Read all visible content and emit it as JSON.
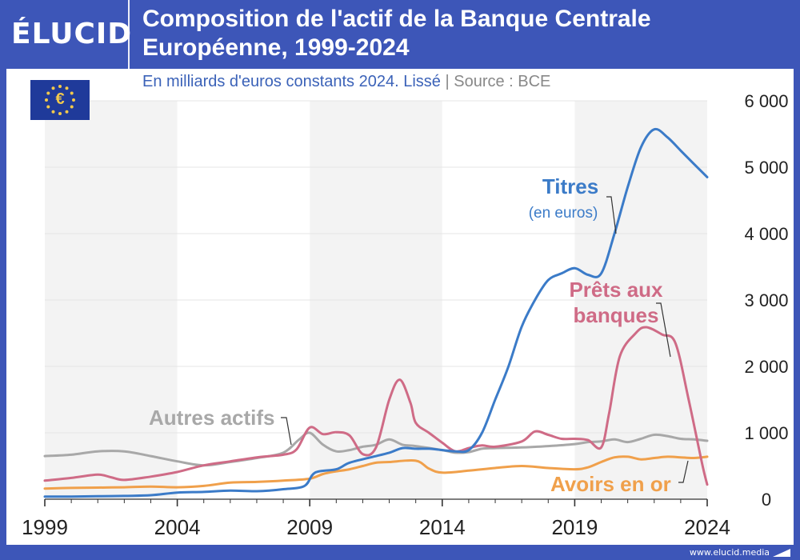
{
  "brand": {
    "logo": "ÉLUCID",
    "url": "www.elucid.media"
  },
  "header": {
    "title_line1": "Composition de l'actif de la Banque Centrale",
    "title_line2": "Européenne, 1999-2024"
  },
  "colors": {
    "brand_blue": "#3d56b8",
    "titres": "#3b7bc8",
    "prets": "#cf6b86",
    "autres": "#a8a8a8",
    "or": "#f0a04b",
    "subtitle_blue": "#3b62b8"
  },
  "chart_data": {
    "type": "line",
    "subtitle": "En milliards d'euros constants 2024. Lissé",
    "source": "Source : BCE",
    "xlim": [
      1999,
      2024
    ],
    "ylim": [
      0,
      6000
    ],
    "x_ticks": [
      1999,
      2004,
      2009,
      2014,
      2019,
      2024
    ],
    "x_tick_labels": [
      "1999",
      "2004",
      "2009",
      "2014",
      "2019",
      "2024"
    ],
    "y_ticks": [
      0,
      1000,
      2000,
      3000,
      4000,
      5000,
      6000
    ],
    "y_tick_labels": [
      "0",
      "1 000",
      "2 000",
      "3 000",
      "4 000",
      "5 000",
      "6 000"
    ],
    "y_axis_position": "right",
    "shaded_bands": [
      [
        1999,
        2004
      ],
      [
        2009,
        2014
      ],
      [
        2019,
        2024
      ]
    ],
    "series": [
      {
        "id": "titres",
        "label": "Titres",
        "sublabel": "(en euros)",
        "color": "#3b7bc8",
        "points": [
          [
            1999,
            40
          ],
          [
            2000,
            40
          ],
          [
            2001,
            45
          ],
          [
            2002,
            50
          ],
          [
            2003,
            60
          ],
          [
            2004,
            100
          ],
          [
            2005,
            110
          ],
          [
            2006,
            130
          ],
          [
            2007,
            120
          ],
          [
            2008,
            150
          ],
          [
            2008.8,
            200
          ],
          [
            2009.2,
            400
          ],
          [
            2010,
            450
          ],
          [
            2010.5,
            550
          ],
          [
            2011.3,
            630
          ],
          [
            2012,
            700
          ],
          [
            2012.5,
            770
          ],
          [
            2013,
            760
          ],
          [
            2013.5,
            760
          ],
          [
            2014,
            740
          ],
          [
            2014.5,
            720
          ],
          [
            2015,
            740
          ],
          [
            2015.5,
            1000
          ],
          [
            2016,
            1500
          ],
          [
            2016.5,
            2000
          ],
          [
            2017,
            2600
          ],
          [
            2017.5,
            3000
          ],
          [
            2018,
            3300
          ],
          [
            2018.5,
            3400
          ],
          [
            2019,
            3480
          ],
          [
            2019.5,
            3380
          ],
          [
            2020,
            3400
          ],
          [
            2020.5,
            4000
          ],
          [
            2021,
            4700
          ],
          [
            2021.5,
            5300
          ],
          [
            2022,
            5570
          ],
          [
            2022.5,
            5450
          ],
          [
            2023,
            5250
          ],
          [
            2023.5,
            5050
          ],
          [
            2024,
            4850
          ]
        ]
      },
      {
        "id": "prets",
        "label": "Prêts aux banques",
        "label_line1": "Prêts aux",
        "label_line2": "banques",
        "color": "#cf6b86",
        "points": [
          [
            1999,
            280
          ],
          [
            2000,
            320
          ],
          [
            2001,
            370
          ],
          [
            2001.5,
            330
          ],
          [
            2002,
            290
          ],
          [
            2003,
            340
          ],
          [
            2004,
            410
          ],
          [
            2005,
            510
          ],
          [
            2006,
            570
          ],
          [
            2007,
            630
          ],
          [
            2008,
            670
          ],
          [
            2008.5,
            750
          ],
          [
            2009,
            1080
          ],
          [
            2009.5,
            980
          ],
          [
            2010,
            1010
          ],
          [
            2010.5,
            960
          ],
          [
            2011,
            680
          ],
          [
            2011.5,
            780
          ],
          [
            2012,
            1500
          ],
          [
            2012.4,
            1800
          ],
          [
            2012.8,
            1450
          ],
          [
            2013,
            1150
          ],
          [
            2013.5,
            1000
          ],
          [
            2014,
            850
          ],
          [
            2014.5,
            720
          ],
          [
            2015,
            770
          ],
          [
            2015.5,
            810
          ],
          [
            2016,
            790
          ],
          [
            2017,
            870
          ],
          [
            2017.5,
            1020
          ],
          [
            2018,
            970
          ],
          [
            2018.5,
            910
          ],
          [
            2019,
            910
          ],
          [
            2019.5,
            890
          ],
          [
            2020,
            780
          ],
          [
            2020.3,
            1300
          ],
          [
            2020.7,
            2150
          ],
          [
            2021.3,
            2500
          ],
          [
            2021.7,
            2590
          ],
          [
            2022.3,
            2480
          ],
          [
            2022.8,
            2350
          ],
          [
            2023.3,
            1500
          ],
          [
            2023.8,
            550
          ],
          [
            2024,
            220
          ]
        ]
      },
      {
        "id": "autres",
        "label": "Autres actifs",
        "color": "#a8a8a8",
        "points": [
          [
            1999,
            650
          ],
          [
            2000,
            670
          ],
          [
            2001,
            720
          ],
          [
            2002,
            720
          ],
          [
            2003,
            650
          ],
          [
            2004,
            570
          ],
          [
            2005,
            510
          ],
          [
            2006,
            560
          ],
          [
            2007,
            620
          ],
          [
            2008,
            700
          ],
          [
            2008.6,
            900
          ],
          [
            2009,
            1000
          ],
          [
            2009.5,
            820
          ],
          [
            2010,
            720
          ],
          [
            2010.5,
            740
          ],
          [
            2011,
            790
          ],
          [
            2011.5,
            820
          ],
          [
            2012,
            900
          ],
          [
            2012.5,
            820
          ],
          [
            2013,
            800
          ],
          [
            2014,
            740
          ],
          [
            2014.5,
            700
          ],
          [
            2015,
            710
          ],
          [
            2015.5,
            760
          ],
          [
            2016,
            770
          ],
          [
            2017,
            780
          ],
          [
            2018,
            800
          ],
          [
            2019,
            830
          ],
          [
            2019.5,
            860
          ],
          [
            2020,
            870
          ],
          [
            2020.5,
            900
          ],
          [
            2021,
            860
          ],
          [
            2021.5,
            910
          ],
          [
            2022,
            970
          ],
          [
            2022.5,
            950
          ],
          [
            2023,
            910
          ],
          [
            2023.5,
            900
          ],
          [
            2024,
            880
          ]
        ]
      },
      {
        "id": "or",
        "label": "Avoirs en or",
        "color": "#f0a04b",
        "points": [
          [
            1999,
            160
          ],
          [
            2000,
            170
          ],
          [
            2001,
            175
          ],
          [
            2002,
            180
          ],
          [
            2003,
            190
          ],
          [
            2004,
            180
          ],
          [
            2005,
            200
          ],
          [
            2006,
            250
          ],
          [
            2007,
            260
          ],
          [
            2008,
            280
          ],
          [
            2009,
            310
          ],
          [
            2009.5,
            380
          ],
          [
            2010,
            420
          ],
          [
            2010.5,
            450
          ],
          [
            2011,
            500
          ],
          [
            2011.5,
            550
          ],
          [
            2012,
            560
          ],
          [
            2013,
            580
          ],
          [
            2013.5,
            460
          ],
          [
            2014,
            400
          ],
          [
            2015,
            430
          ],
          [
            2016,
            470
          ],
          [
            2017,
            500
          ],
          [
            2018,
            470
          ],
          [
            2019,
            450
          ],
          [
            2019.5,
            480
          ],
          [
            2020,
            560
          ],
          [
            2020.5,
            630
          ],
          [
            2021,
            640
          ],
          [
            2021.5,
            600
          ],
          [
            2022,
            620
          ],
          [
            2022.5,
            640
          ],
          [
            2023,
            630
          ],
          [
            2023.5,
            620
          ],
          [
            2024,
            640
          ]
        ]
      }
    ]
  }
}
